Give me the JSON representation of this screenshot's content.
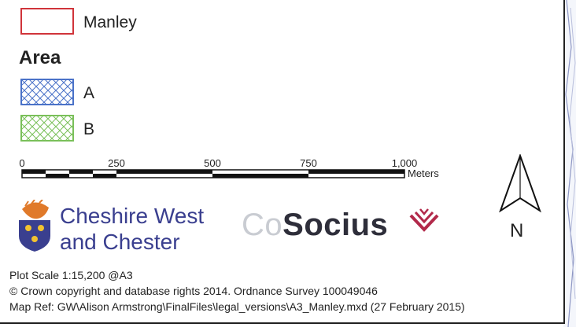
{
  "legend": {
    "boundary": {
      "label": "Manley",
      "stroke": "#d0343a"
    },
    "area_heading": "Area",
    "areas": [
      {
        "label": "A",
        "color": "#4a72c8"
      },
      {
        "label": "B",
        "color": "#7ac05a"
      }
    ]
  },
  "scale_bar": {
    "ticks": [
      "0",
      "250",
      "500",
      "750",
      "1,000"
    ],
    "unit": "Meters"
  },
  "logos": {
    "council": {
      "line1": "Cheshire West",
      "line2": "and Chester"
    },
    "cosocius": {
      "prefix": "Co",
      "name": "Socius"
    }
  },
  "north_arrow": {
    "letter": "N"
  },
  "footer": {
    "plot_scale": "Plot Scale 1:15,200 @A3",
    "copyright": "© Crown copyright and database rights 2014. Ordnance Survey 100049046",
    "map_ref": "Map Ref: GW\\Alison Armstrong\\FinalFiles\\legal_versions\\A3_Manley.mxd (27 February 2015)"
  }
}
